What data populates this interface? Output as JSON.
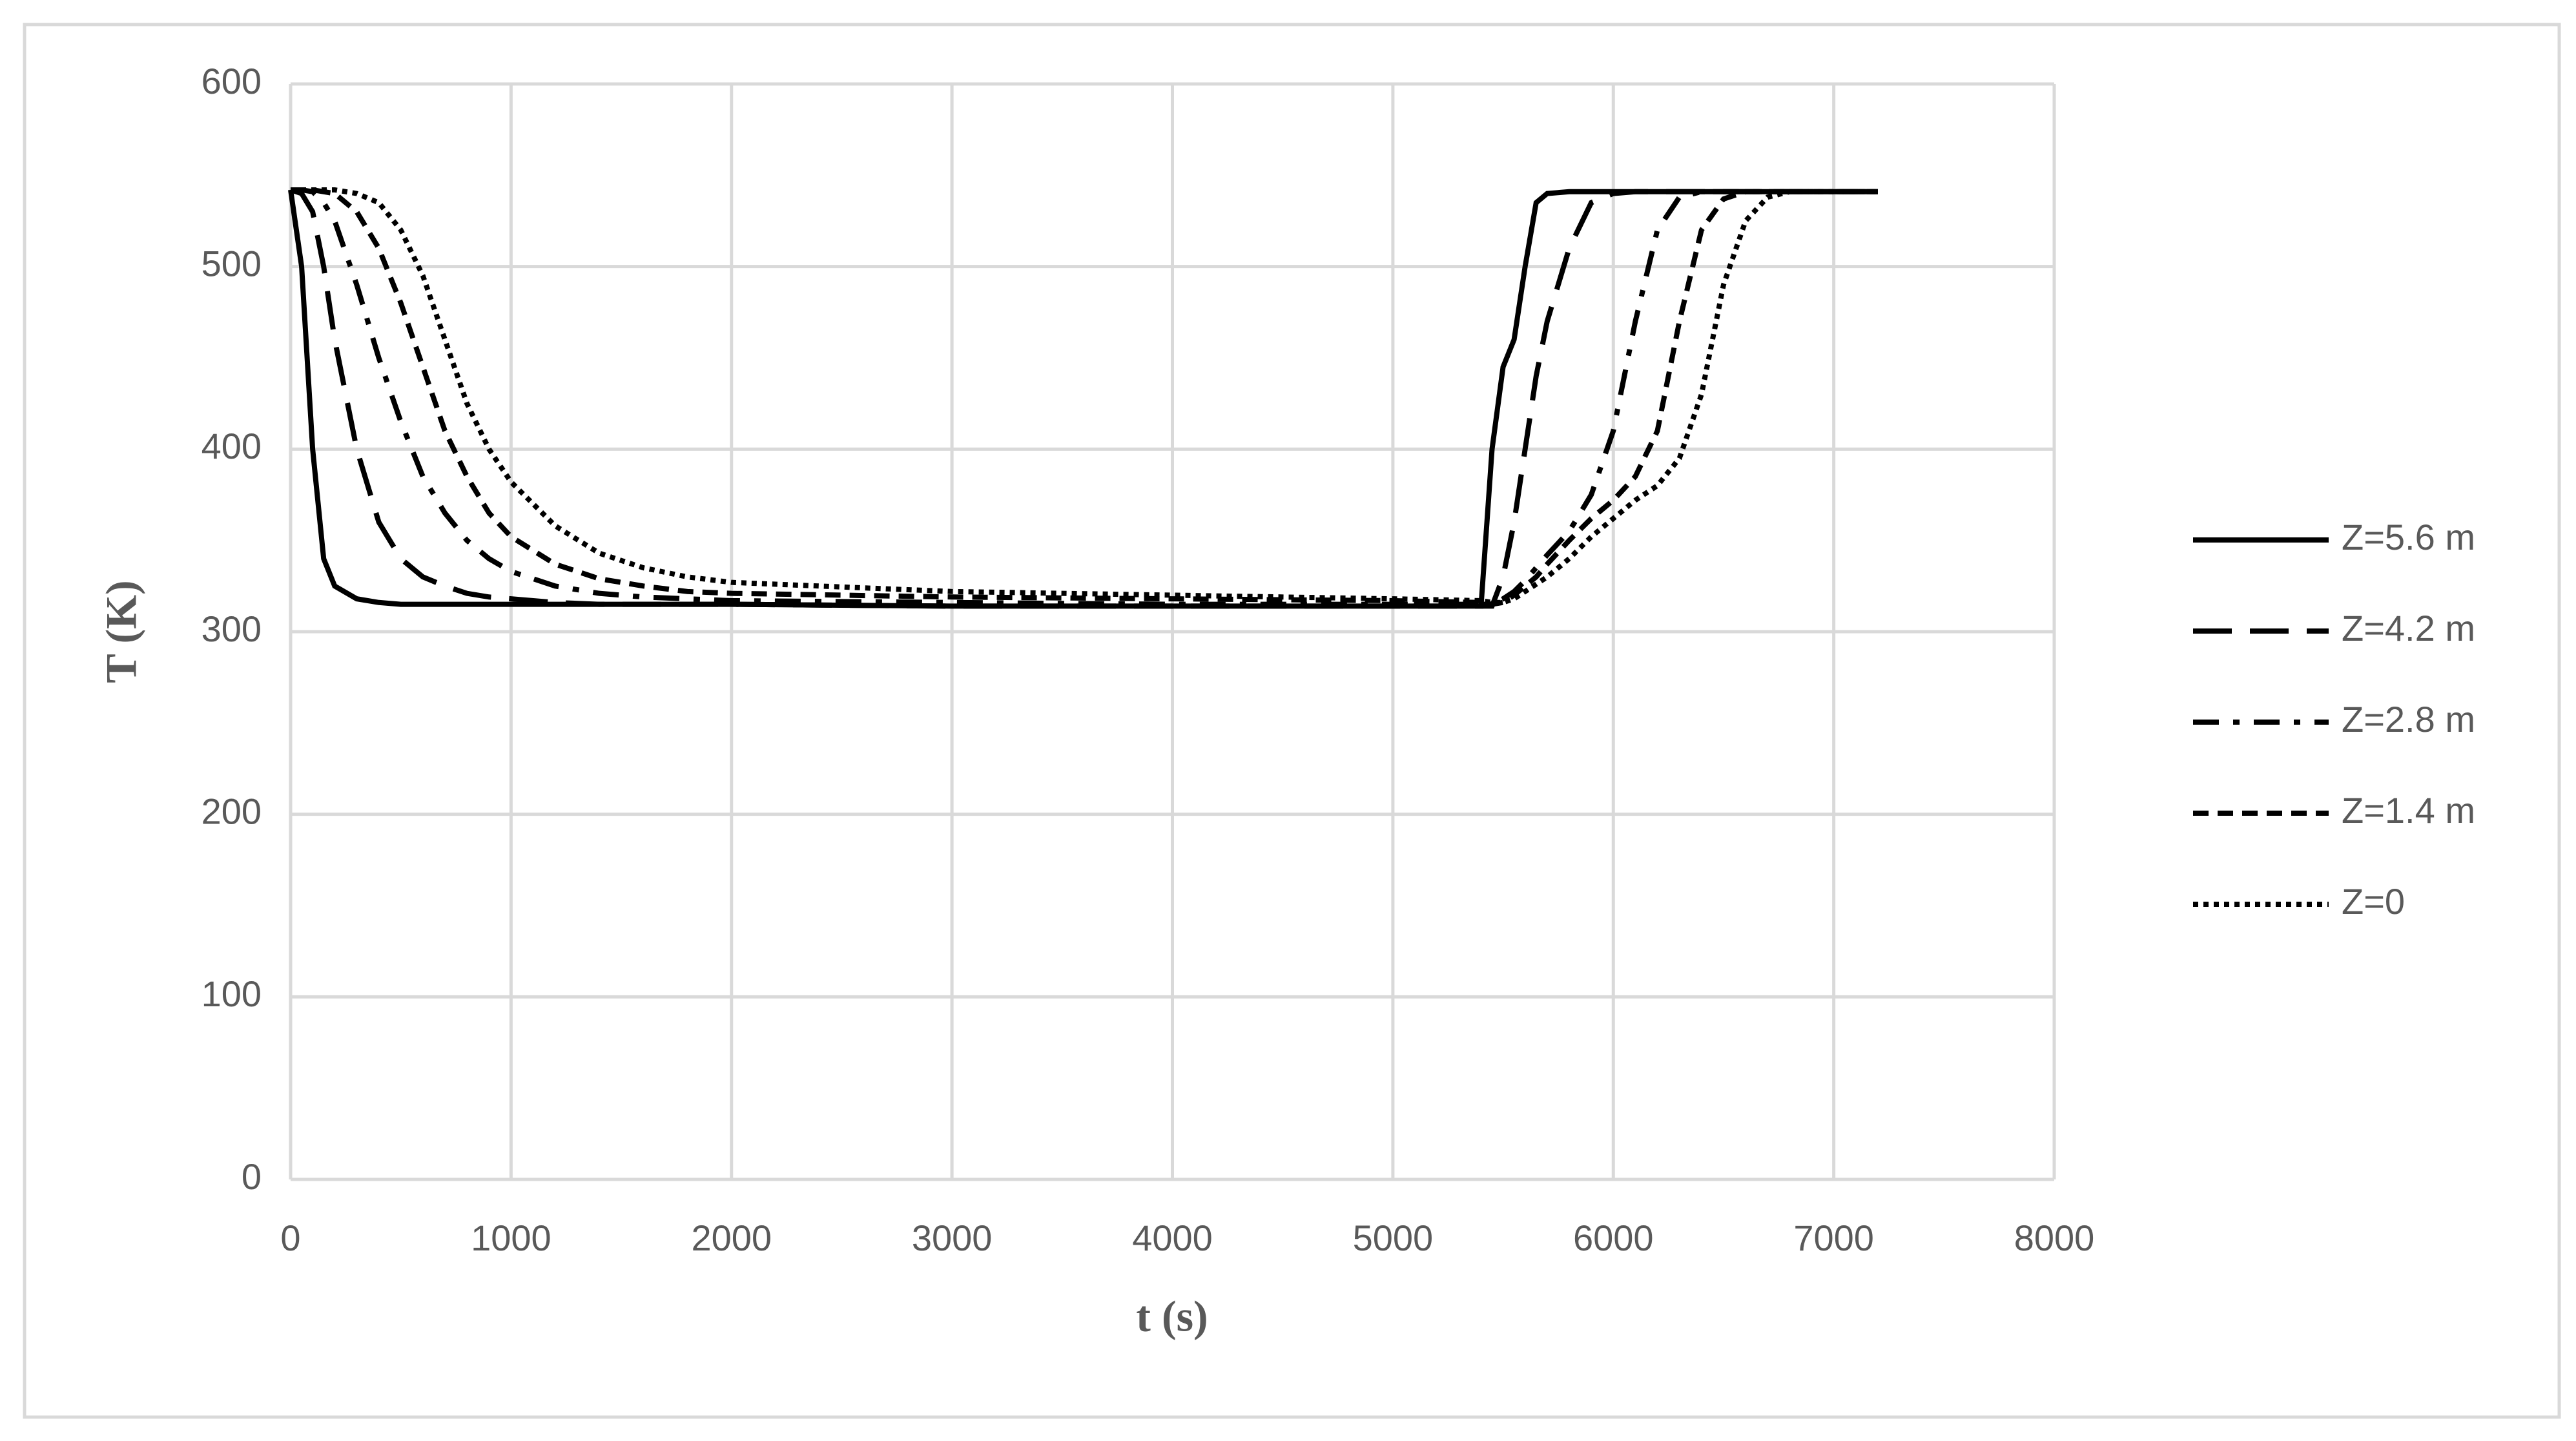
{
  "chart_data": {
    "type": "line",
    "x_label": "t (s)",
    "y_label": "T (K)",
    "x": [
      0,
      50,
      100,
      150,
      200,
      300,
      400,
      500,
      600,
      700,
      800,
      900,
      1000,
      1200,
      1400,
      1600,
      1800,
      2000,
      3000,
      4000,
      5000,
      5400,
      5450,
      5500,
      5550,
      5600,
      5650,
      5700,
      5800,
      5900,
      6000,
      6100,
      6200,
      6300,
      6400,
      6500,
      6600,
      6700,
      6800,
      7000,
      7200
    ],
    "series": [
      {
        "name": "Z=5.6 m",
        "color": "#000000",
        "style": "solid",
        "values": [
          542,
          500,
          400,
          340,
          325,
          318,
          316,
          315,
          315,
          315,
          315,
          315,
          315,
          315,
          315,
          315,
          315,
          315,
          314,
          314,
          314,
          314,
          400,
          445,
          460,
          500,
          535,
          540,
          541,
          541,
          541,
          541,
          541,
          541,
          541,
          541,
          541,
          541,
          541,
          541,
          541
        ]
      },
      {
        "name": "Z=4.2 m",
        "color": "#000000",
        "style": "long-dash",
        "values": [
          542,
          540,
          530,
          500,
          460,
          400,
          360,
          340,
          330,
          325,
          321,
          319,
          318,
          316,
          315,
          315,
          315,
          315,
          314,
          314,
          314,
          314,
          314,
          330,
          360,
          400,
          440,
          470,
          510,
          535,
          540,
          541,
          541,
          541,
          541,
          541,
          541,
          541,
          541,
          541,
          541
        ]
      },
      {
        "name": "Z=2.8 m",
        "color": "#000000",
        "style": "dash-dot",
        "values": [
          542,
          542,
          541,
          535,
          525,
          490,
          450,
          415,
          385,
          365,
          350,
          340,
          333,
          325,
          321,
          319,
          318,
          317,
          316,
          315,
          315,
          315,
          315,
          318,
          322,
          328,
          335,
          342,
          355,
          375,
          410,
          470,
          520,
          538,
          541,
          541,
          541,
          541,
          541,
          541,
          541
        ]
      },
      {
        "name": "Z=1.4 m",
        "color": "#000000",
        "style": "dash",
        "values": [
          542,
          542,
          542,
          541,
          540,
          530,
          510,
          480,
          445,
          410,
          385,
          365,
          352,
          337,
          329,
          325,
          322,
          321,
          319,
          318,
          317,
          316,
          315,
          316,
          320,
          325,
          330,
          337,
          350,
          362,
          372,
          385,
          410,
          470,
          520,
          537,
          541,
          541,
          541,
          541,
          541
        ]
      },
      {
        "name": "Z=0",
        "color": "#000000",
        "style": "dot",
        "values": [
          542,
          542,
          542,
          542,
          542,
          540,
          535,
          520,
          495,
          460,
          425,
          400,
          382,
          358,
          343,
          335,
          330,
          327,
          322,
          320,
          318,
          317,
          316,
          316,
          318,
          322,
          326,
          330,
          340,
          352,
          362,
          372,
          380,
          395,
          430,
          490,
          525,
          538,
          541,
          541,
          541
        ]
      }
    ],
    "xlim": [
      0,
      8000
    ],
    "xticks": [
      0,
      1000,
      2000,
      3000,
      4000,
      5000,
      6000,
      7000,
      8000
    ],
    "ylim": [
      0,
      600
    ],
    "yticks": [
      0,
      100,
      200,
      300,
      400,
      500,
      600
    ],
    "grid": true,
    "legend": "right"
  }
}
